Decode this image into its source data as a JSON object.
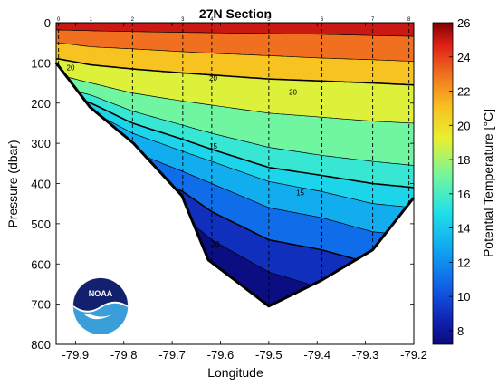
{
  "chart_data": {
    "type": "heatmap",
    "title": "27N Section",
    "xlabel": "Longitude",
    "ylabel": "Pressure (dbar)",
    "xlim": [
      -79.94,
      -79.2
    ],
    "ylim": [
      800,
      0
    ],
    "xticks": [
      -79.9,
      -79.8,
      -79.7,
      -79.6,
      -79.5,
      -79.4,
      -79.3,
      -79.2
    ],
    "yticks": [
      0,
      100,
      200,
      300,
      400,
      500,
      600,
      700,
      800
    ],
    "colorbar": {
      "label": "Potential Temperature [°C]",
      "range": [
        7.2,
        26
      ],
      "ticks": [
        8,
        10,
        12,
        14,
        16,
        18,
        20,
        22,
        24,
        26
      ]
    },
    "stations": [
      {
        "label": "0",
        "lon": -79.935
      },
      {
        "label": "1",
        "lon": -79.868
      },
      {
        "label": "2",
        "lon": -79.782
      },
      {
        "label": "3",
        "lon": -79.678
      },
      {
        "label": "4",
        "lon": -79.618
      },
      {
        "label": "5",
        "lon": -79.5
      },
      {
        "label": "6",
        "lon": -79.39
      },
      {
        "label": "7",
        "lon": -79.285
      },
      {
        "label": "8",
        "lon": -79.21
      }
    ],
    "bottom_profile": [
      {
        "lon": -79.94,
        "p": 100
      },
      {
        "lon": -79.87,
        "p": 210
      },
      {
        "lon": -79.78,
        "p": 300
      },
      {
        "lon": -79.68,
        "p": 430
      },
      {
        "lon": -79.625,
        "p": 590
      },
      {
        "lon": -79.5,
        "p": 705
      },
      {
        "lon": -79.39,
        "p": 640
      },
      {
        "lon": -79.285,
        "p": 565
      },
      {
        "lon": -79.2,
        "p": 435
      }
    ],
    "isotherm_depths": {
      "temps": [
        26,
        24,
        22,
        20,
        18,
        16,
        15,
        14,
        12,
        10,
        8
      ],
      "stations": [
        {
          "lon": -79.935,
          "p": [
            0,
            18,
            50,
            90,
            130,
            160,
            170,
            185,
            210,
            240,
            270
          ]
        },
        {
          "lon": -79.868,
          "p": [
            0,
            20,
            60,
            105,
            150,
            180,
            200,
            220,
            250,
            280,
            320
          ]
        },
        {
          "lon": -79.782,
          "p": [
            0,
            22,
            65,
            115,
            175,
            220,
            250,
            275,
            320,
            360,
            410
          ]
        },
        {
          "lon": -79.678,
          "p": [
            0,
            24,
            72,
            125,
            195,
            255,
            290,
            320,
            370,
            420,
            480
          ]
        },
        {
          "lon": -79.618,
          "p": [
            0,
            25,
            76,
            130,
            205,
            275,
            315,
            345,
            400,
            470,
            540
          ]
        },
        {
          "lon": -79.5,
          "p": [
            0,
            27,
            82,
            140,
            225,
            310,
            360,
            395,
            460,
            540,
            620
          ]
        },
        {
          "lon": -79.39,
          "p": [
            0,
            29,
            88,
            145,
            235,
            330,
            380,
            420,
            485,
            565,
            660
          ]
        },
        {
          "lon": -79.285,
          "p": [
            0,
            32,
            92,
            150,
            245,
            345,
            400,
            450,
            520,
            600,
            700
          ]
        },
        {
          "lon": -79.2,
          "p": [
            0,
            34,
            96,
            155,
            250,
            355,
            410,
            460,
            530,
            610,
            710
          ]
        }
      ]
    },
    "contour_labels": [
      {
        "text": "20",
        "lon": -79.91,
        "p": 112
      },
      {
        "text": "20",
        "lon": -79.615,
        "p": 138
      },
      {
        "text": "20",
        "lon": -79.45,
        "p": 172
      },
      {
        "text": "15",
        "lon": -79.615,
        "p": 306
      },
      {
        "text": "15",
        "lon": -79.435,
        "p": 422
      },
      {
        "text": "10",
        "lon": -79.61,
        "p": 550
      }
    ],
    "logo_text": "NOAA",
    "grid": false
  }
}
